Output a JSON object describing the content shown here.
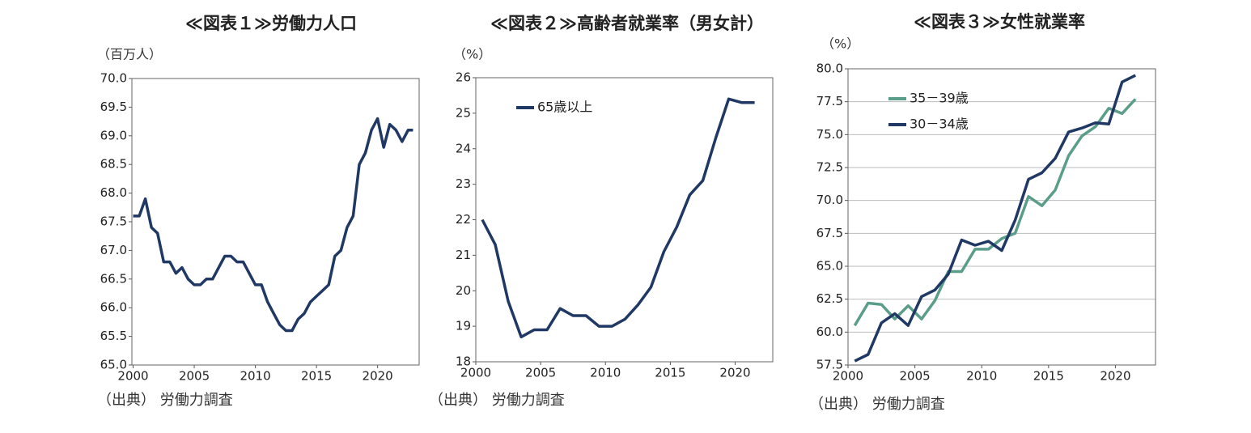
{
  "chart_data": [
    {
      "type": "line",
      "title": "≪図表１≫労働力人口",
      "y_label": "（百万人）",
      "source": "（出典） 労働力調査",
      "x": [
        2000.0,
        2000.5,
        2001.0,
        2001.5,
        2002.0,
        2002.5,
        2003.0,
        2003.5,
        2004.0,
        2004.5,
        2005.0,
        2005.5,
        2006.0,
        2006.5,
        2007.0,
        2007.5,
        2008.0,
        2008.5,
        2009.0,
        2009.5,
        2010.0,
        2010.5,
        2011.0,
        2011.5,
        2012.0,
        2012.5,
        2013.0,
        2013.5,
        2014.0,
        2014.5,
        2015.0,
        2015.5,
        2016.0,
        2016.5,
        2017.0,
        2017.5,
        2018.0,
        2018.5,
        2019.0,
        2019.5,
        2020.0,
        2020.5,
        2021.0,
        2021.5,
        2022.0,
        2022.5,
        2022.9
      ],
      "values": [
        67.6,
        67.6,
        67.9,
        67.4,
        67.3,
        66.8,
        66.8,
        66.6,
        66.7,
        66.5,
        66.4,
        66.4,
        66.5,
        66.5,
        66.7,
        66.9,
        66.9,
        66.8,
        66.8,
        66.6,
        66.4,
        66.4,
        66.1,
        65.9,
        65.7,
        65.6,
        65.6,
        65.8,
        65.9,
        66.1,
        66.2,
        66.3,
        66.4,
        66.9,
        67.0,
        67.4,
        67.6,
        68.5,
        68.7,
        69.1,
        69.3,
        68.8,
        69.2,
        69.1,
        68.9,
        69.1,
        69.1
      ],
      "color": "#1f3864",
      "xlim": [
        1999.9,
        2023.4
      ],
      "xticks": [
        2000,
        2005,
        2010,
        2015,
        2020
      ],
      "ylim": [
        65,
        70
      ],
      "yticks": [
        {
          "value": 65,
          "label": "65.0"
        },
        65.5,
        {
          "value": 66,
          "label": "66.0"
        },
        66.5,
        {
          "value": 67,
          "label": "67.0"
        },
        67.5,
        {
          "value": 68,
          "label": "68.0"
        },
        68.5,
        {
          "value": 69,
          "label": "69.0"
        },
        69.5,
        {
          "value": 70,
          "label": "70.0"
        }
      ],
      "grid": false
    },
    {
      "type": "line",
      "title": "≪図表２≫高齢者就業率（男女計）",
      "y_label": "（%）",
      "source": "（出典） 労働力調査",
      "x": [
        2000.5,
        2001.5,
        2002.5,
        2003.5,
        2004.5,
        2005.5,
        2006.5,
        2007.5,
        2008.5,
        2009.5,
        2010.5,
        2011.5,
        2012.5,
        2013.5,
        2014.5,
        2015.5,
        2016.5,
        2017.5,
        2018.5,
        2019.5,
        2020.5,
        2021.5
      ],
      "series": [
        {
          "name": "65歳以上",
          "color": "#1f3864",
          "values": [
            22.0,
            21.3,
            19.7,
            18.7,
            18.9,
            18.9,
            19.5,
            19.3,
            19.3,
            19.0,
            19.0,
            19.2,
            19.6,
            20.1,
            21.1,
            21.8,
            22.7,
            23.1,
            24.3,
            25.4,
            25.3,
            25.3
          ]
        }
      ],
      "xlim": [
        2000,
        2022.9
      ],
      "xticks": [
        2000,
        2005,
        2010,
        2015,
        2020
      ],
      "ylim": [
        18,
        26
      ],
      "yticks": [
        18,
        19,
        20,
        21,
        22,
        23,
        24,
        25,
        26
      ],
      "grid": false,
      "legend": "upper left"
    },
    {
      "type": "line",
      "title": "≪図表３≫女性就業率",
      "y_label": "（%）",
      "source": "（出典） 労働力調査",
      "x": [
        2000.5,
        2001.5,
        2002.5,
        2003.5,
        2004.5,
        2005.5,
        2006.5,
        2007.5,
        2008.5,
        2009.5,
        2010.5,
        2011.5,
        2012.5,
        2013.5,
        2014.5,
        2015.5,
        2016.5,
        2017.5,
        2018.5,
        2019.5,
        2020.5,
        2021.5
      ],
      "series": [
        {
          "name": "35－39歳",
          "color": "#5a9e8a",
          "values": [
            60.5,
            62.2,
            62.1,
            61.0,
            62.0,
            61.0,
            62.4,
            64.6,
            64.6,
            66.3,
            66.3,
            67.1,
            67.5,
            70.3,
            69.6,
            70.8,
            73.4,
            74.9,
            75.6,
            77.0,
            76.6,
            77.7
          ]
        },
        {
          "name": "30－34歳",
          "color": "#1f3864",
          "values": [
            57.8,
            58.3,
            60.7,
            61.4,
            60.5,
            62.7,
            63.2,
            64.4,
            67.0,
            66.6,
            66.9,
            66.2,
            68.5,
            71.6,
            72.1,
            73.2,
            75.2,
            75.5,
            75.9,
            75.8,
            79.0,
            79.5
          ]
        }
      ],
      "xlim": [
        2000,
        2023
      ],
      "xticks": [
        2000,
        2005,
        2010,
        2015,
        2020
      ],
      "ylim": [
        57.5,
        80
      ],
      "yticks": [
        57.5,
        {
          "value": 60,
          "label": "60.0"
        },
        62.5,
        {
          "value": 65,
          "label": "65.0"
        },
        67.5,
        {
          "value": 70,
          "label": "70.0"
        },
        72.5,
        {
          "value": 75,
          "label": "75.0"
        },
        77.5,
        {
          "value": 80,
          "label": "80.0"
        }
      ],
      "grid": true,
      "legend": "upper left"
    }
  ]
}
